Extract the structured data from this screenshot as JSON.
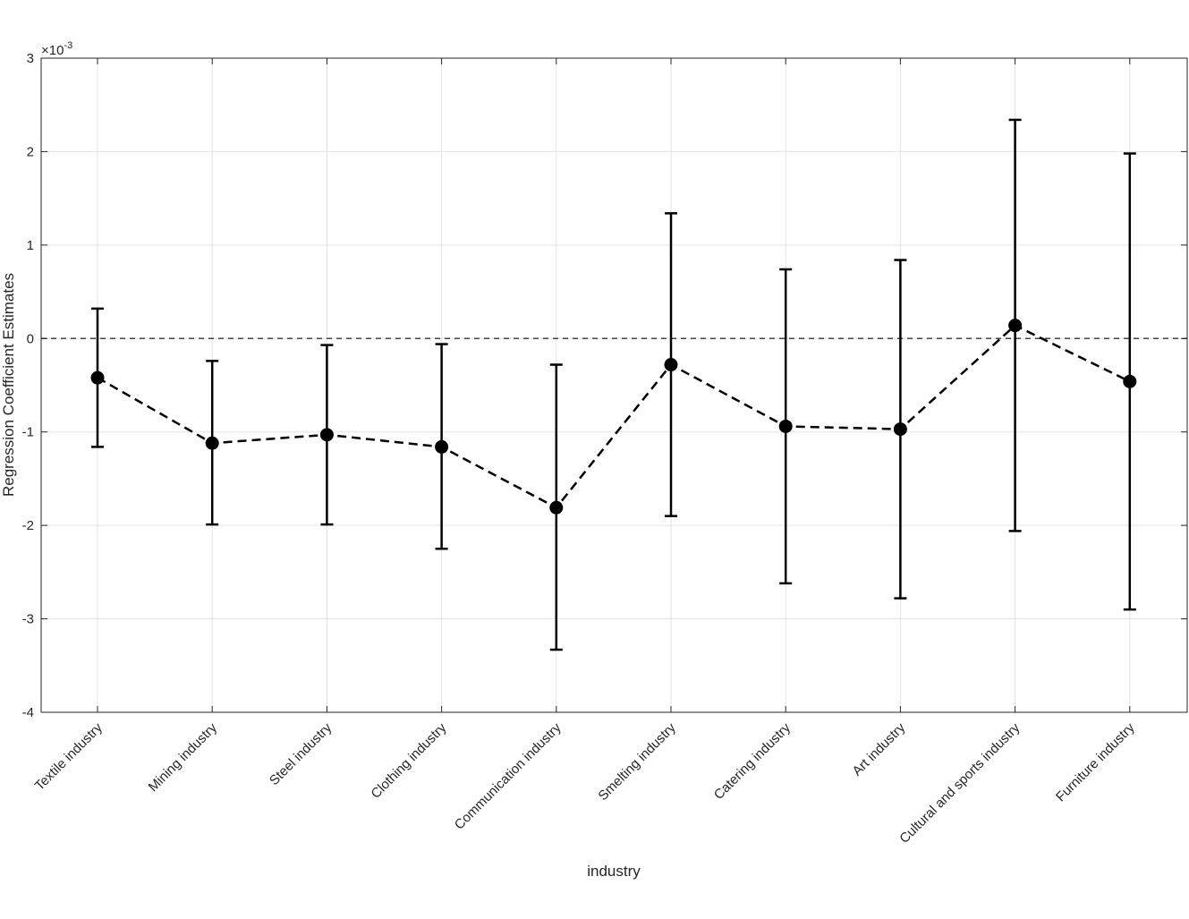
{
  "chart_data": {
    "type": "scatter",
    "title": "",
    "xlabel": "industry",
    "ylabel": "Regression Coefficient Estimates",
    "y_exponent_label": "×10",
    "y_exponent_power": "-3",
    "y_scale": 0.001,
    "ylim": [
      -0.004,
      0.003
    ],
    "yticks": [
      -4,
      -3,
      -2,
      -1,
      0,
      1,
      2,
      3
    ],
    "ytick_labels": [
      "-4",
      "-3",
      "-2",
      "-1",
      "0",
      "1",
      "2",
      "3"
    ],
    "grid": true,
    "reference_line": {
      "y": 0,
      "style": "dashed"
    },
    "categories": [
      "Textile industry",
      "Mining industry",
      "Steel industry",
      "Clothing industry",
      "Communication industry",
      "Smelting industry",
      "Catering industry",
      "Art industry",
      "Cultural and sports industry",
      "Furniture industry"
    ],
    "series": [
      {
        "values": [
          -0.00042,
          -0.00112,
          -0.00103,
          -0.00116,
          -0.00181,
          -0.00028,
          -0.00094,
          -0.00097,
          0.00014,
          -0.00046
        ],
        "lower": [
          -0.00116,
          -0.00199,
          -0.00199,
          -0.00225,
          -0.00333,
          -0.0019,
          -0.00262,
          -0.00278,
          -0.00206,
          -0.0029
        ],
        "upper": [
          0.00032,
          -0.00024,
          -7e-05,
          -6e-05,
          -0.00028,
          0.00134,
          0.00074,
          0.00084,
          0.00234,
          0.00198
        ],
        "line_style": "dashed",
        "marker": "filled-circle",
        "color": "#000000"
      }
    ]
  }
}
